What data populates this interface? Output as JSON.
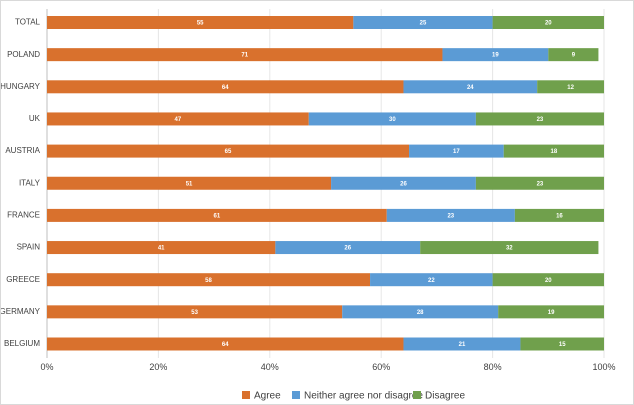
{
  "chart_data": {
    "type": "bar",
    "orientation": "horizontal",
    "stacked": true,
    "title": "",
    "xlabel": "",
    "ylabel": "",
    "xlim": [
      0,
      100
    ],
    "x_ticks": [
      "0%",
      "20%",
      "40%",
      "60%",
      "80%",
      "100%"
    ],
    "grid": true,
    "legend_position": "bottom",
    "categories": [
      "TOTAL",
      "POLAND",
      "HUNGARY",
      "UK",
      "AUSTRIA",
      "ITALY",
      "FRANCE",
      "SPAIN",
      "GREECE",
      "GERMANY",
      "BELGIUM"
    ],
    "series": [
      {
        "name": "Agree",
        "color": "#d9712d",
        "values": [
          55,
          71,
          64,
          47,
          65,
          51,
          61,
          41,
          58,
          53,
          64
        ]
      },
      {
        "name": "Neither agree nor disagree",
        "color": "#5b9bd5",
        "values": [
          25,
          19,
          24,
          30,
          17,
          26,
          23,
          26,
          22,
          28,
          21
        ]
      },
      {
        "name": "Disagree",
        "color": "#70a04c",
        "values": [
          20,
          9,
          12,
          23,
          18,
          23,
          16,
          32,
          20,
          19,
          15
        ]
      }
    ]
  }
}
